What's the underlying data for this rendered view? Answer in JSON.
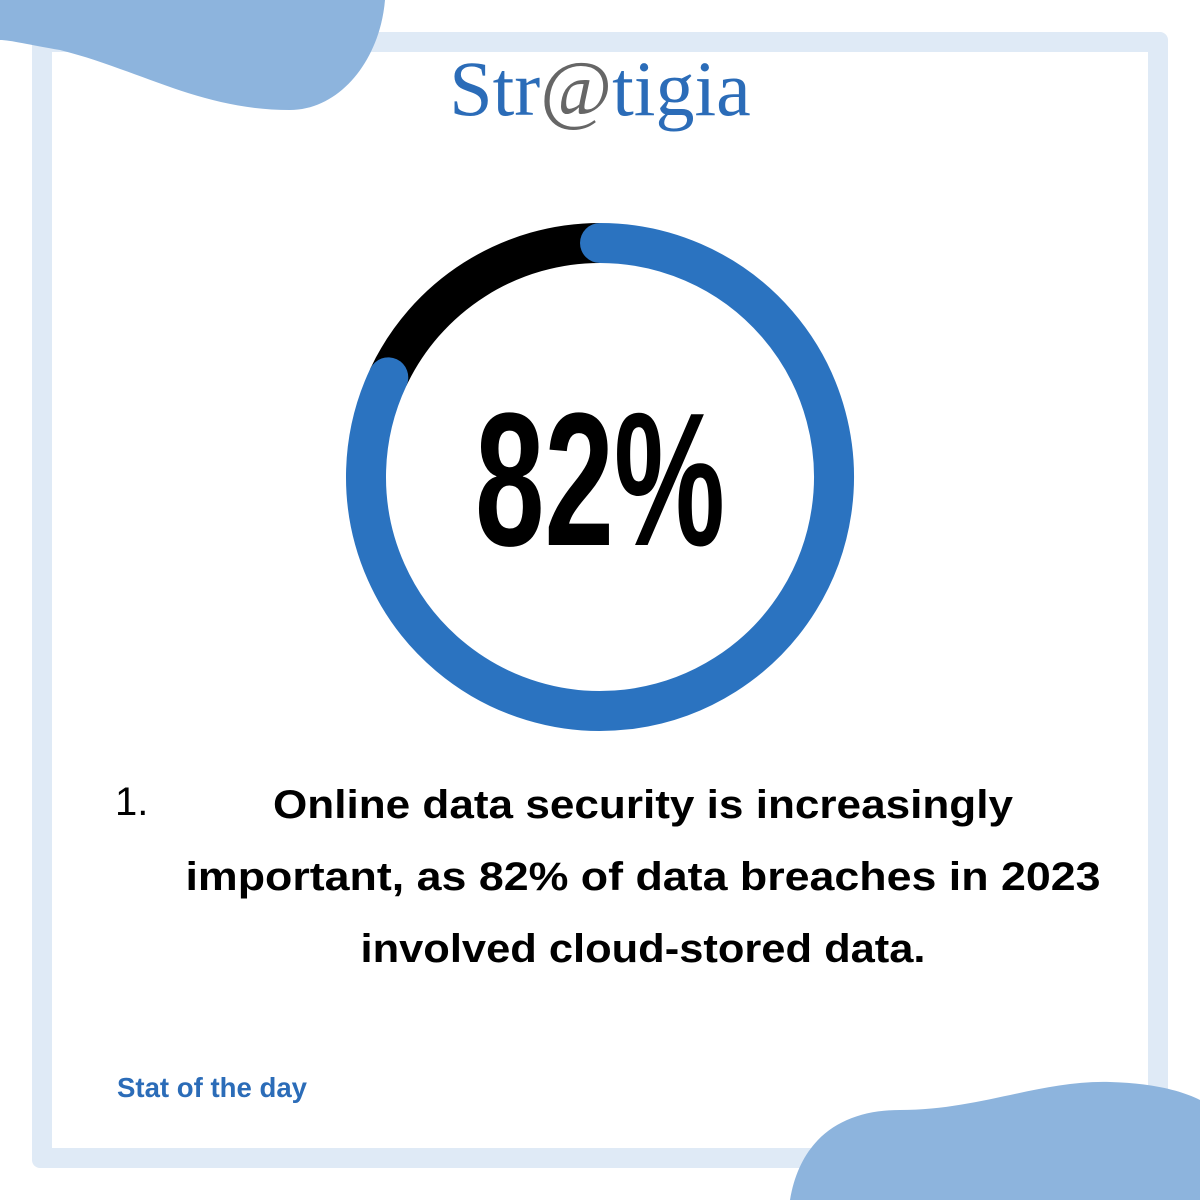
{
  "logo": [
    "Str",
    "@",
    "tigia"
  ],
  "chart_data": {
    "type": "donut",
    "values": [
      82,
      18
    ],
    "colors": [
      "#2b73c0",
      "#000000"
    ],
    "value_labels": [
      "82%",
      null
    ]
  },
  "statement": {
    "number": "1.",
    "lines": [
      "Online data security is increasingly",
      "important, as 82% of data breaches in 2023",
      "involved cloud-stored data."
    ]
  },
  "footer": "Stat of the day"
}
